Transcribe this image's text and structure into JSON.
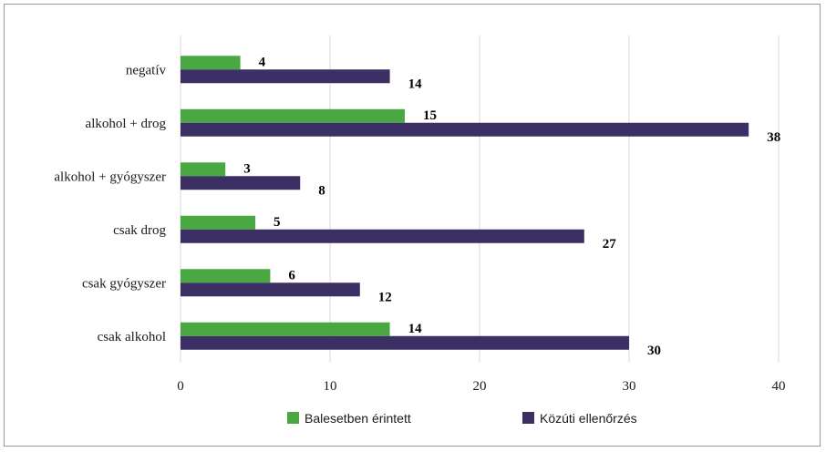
{
  "chart_data": {
    "type": "bar",
    "orientation": "horizontal",
    "categories": [
      "negatív",
      "alkohol + drog",
      "alkohol + gyógyszer",
      "csak drog",
      "csak gyógyszer",
      "csak alkohol"
    ],
    "series": [
      {
        "name": "Balesetben érintett",
        "values": [
          4,
          15,
          3,
          5,
          6,
          14
        ],
        "color": "#4aa843"
      },
      {
        "name": "Közúti ellenőrzés",
        "values": [
          14,
          38,
          8,
          27,
          12,
          30
        ],
        "color": "#3b2f63"
      }
    ],
    "xlim": [
      0,
      40
    ],
    "xticks": [
      0,
      10,
      20,
      30,
      40
    ],
    "grid": true,
    "legend_position": "bottom",
    "data_labels": true
  }
}
